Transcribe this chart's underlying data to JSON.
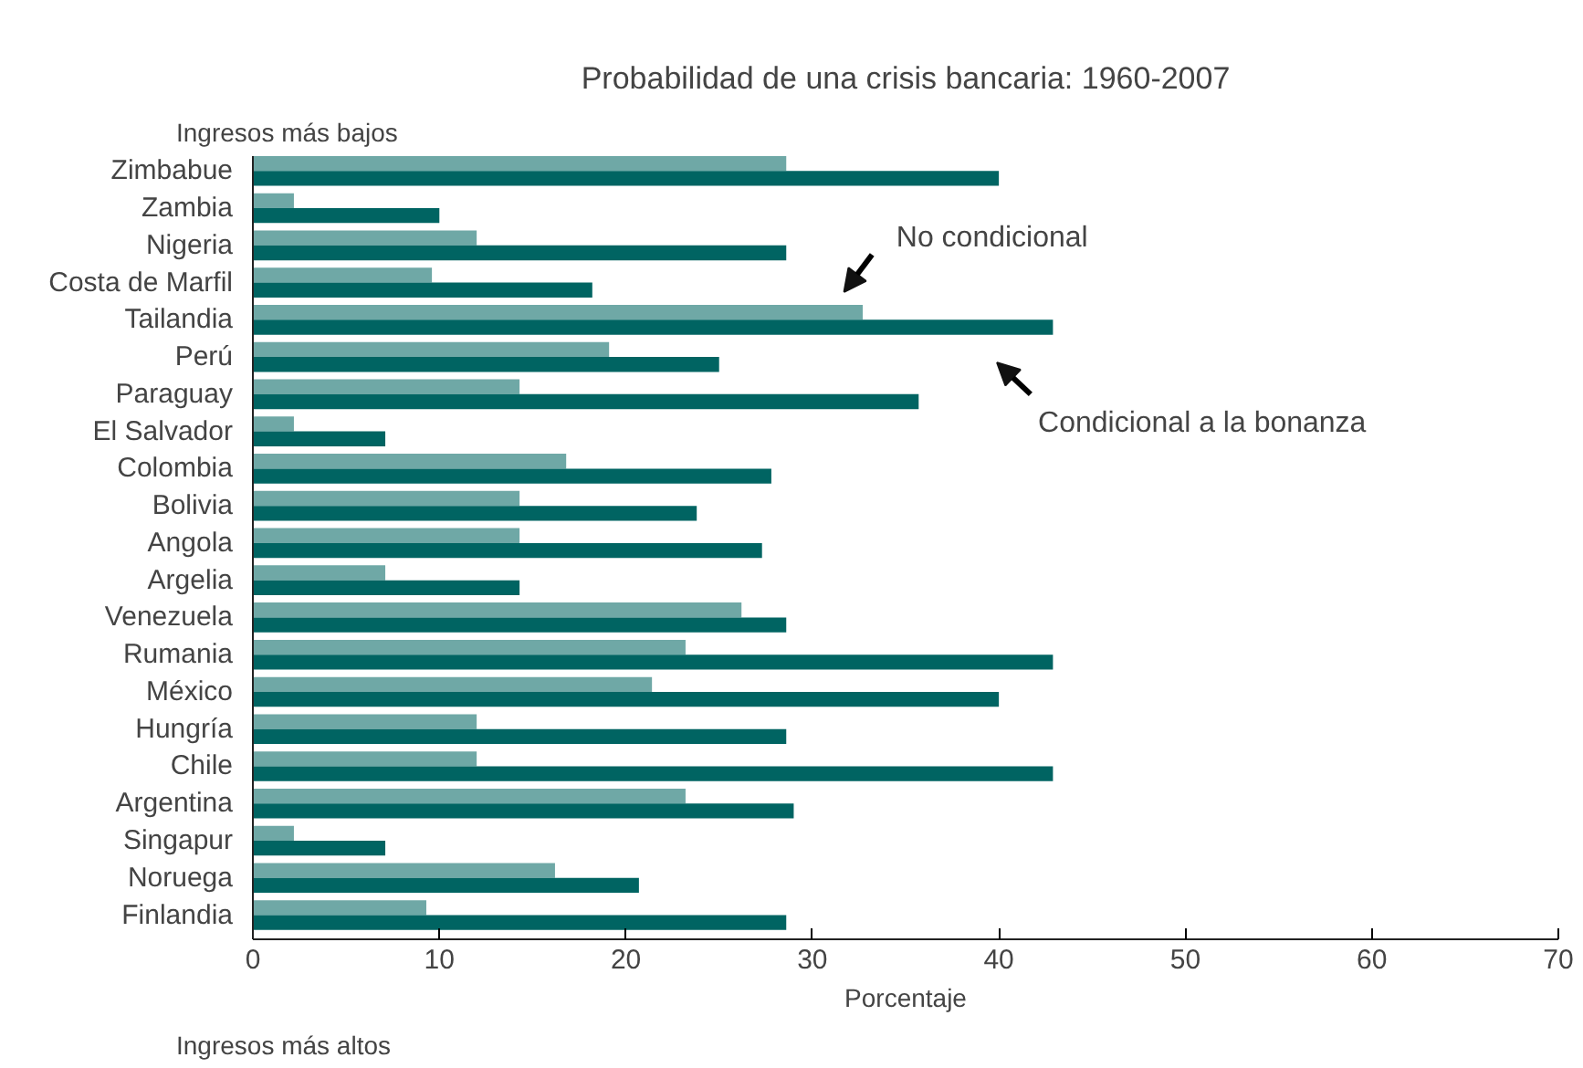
{
  "chart_data": {
    "type": "bar",
    "orientation": "horizontal",
    "title": "Probabilidad de una crisis bancaria: 1960-2007",
    "xlabel": "Porcentaje",
    "categories": [
      "Zimbabue",
      "Zambia",
      "Nigeria",
      "Costa de Marfil",
      "Tailandia",
      "Perú",
      "Paraguay",
      "El Salvador",
      "Colombia",
      "Bolivia",
      "Angola",
      "Argelia",
      "Venezuela",
      "Rumania",
      "México",
      "Hungría",
      "Chile",
      "Argentina",
      "Singapur",
      "Noruega",
      "Finlandia"
    ],
    "series": [
      {
        "name": "No condicional",
        "color": "#6fa8a6",
        "values": [
          28.6,
          2.2,
          12,
          9.6,
          32.7,
          19.1,
          14.3,
          2.2,
          16.8,
          14.3,
          14.3,
          7.1,
          26.2,
          23.2,
          21.4,
          12,
          12,
          23.2,
          2.2,
          16.2,
          9.3
        ]
      },
      {
        "name": "Condicional a la bonanza",
        "color": "#006462",
        "values": [
          40,
          10,
          28.6,
          18.2,
          42.9,
          25,
          35.7,
          7.1,
          27.8,
          23.8,
          27.3,
          14.3,
          28.6,
          42.9,
          40,
          28.6,
          42.9,
          29,
          7.1,
          20.7,
          28.6
        ]
      }
    ],
    "xlim": [
      0,
      70
    ],
    "xticks": [
      0,
      10,
      20,
      30,
      40,
      50,
      60,
      70
    ],
    "grid": false,
    "annotations": [
      "Ingresos más bajos",
      "Ingresos más altos"
    ]
  }
}
